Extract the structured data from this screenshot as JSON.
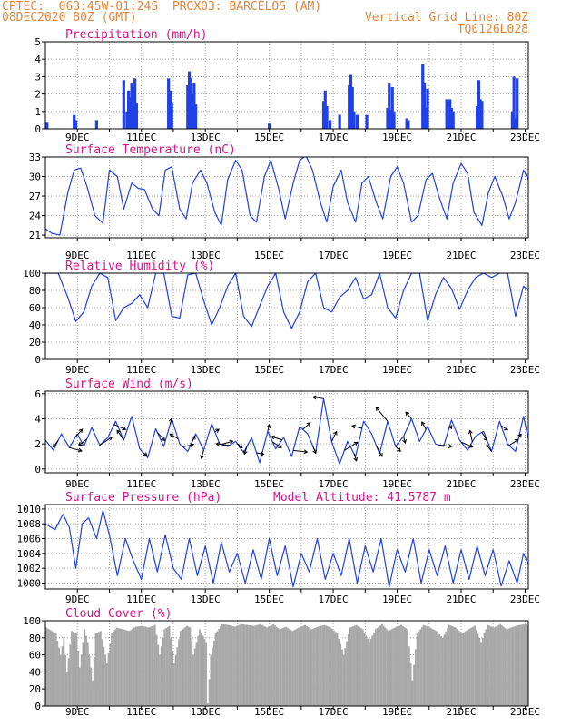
{
  "header": {
    "line1_left": "CPTEC:  063:45W-01:24S  PROX03: BARCELOS (AM)",
    "line2_left": "08DEC2020 80Z (GMT)",
    "line2_right": "Vertical Grid Line: 80Z",
    "line3_right": "TQ0126L028"
  },
  "colors": {
    "header": "#e8843a",
    "title": "#e0108a",
    "series": "#2040e8",
    "cloud": "#a8a8a8",
    "grid": "#8c8c8c"
  },
  "chart_data": [
    {
      "id": "precip",
      "type": "bar",
      "title": "Precipitation (mm/h)",
      "ylim": [
        0,
        5
      ],
      "yticks": [
        0,
        1,
        2,
        3,
        4,
        5
      ],
      "xlim": [
        8,
        23.1
      ],
      "xtick_labels": [
        "9DEC",
        "11DEC",
        "13DEC",
        "15DEC",
        "17DEC",
        "19DEC",
        "21DEC",
        "23DEC"
      ],
      "x": [
        8.05,
        8.9,
        8.95,
        9.6,
        10.45,
        10.55,
        10.6,
        10.65,
        10.7,
        10.75,
        10.8,
        10.85,
        11.85,
        11.9,
        11.95,
        12.45,
        12.5,
        12.55,
        12.6,
        12.65,
        12.7,
        15.0,
        16.7,
        16.75,
        16.8,
        16.9,
        17.2,
        17.5,
        17.55,
        17.6,
        17.65,
        17.75,
        18.05,
        18.7,
        18.75,
        18.8,
        18.85,
        18.9,
        19.3,
        19.35,
        19.8,
        19.85,
        19.9,
        19.95,
        20.55,
        20.6,
        20.65,
        20.7,
        20.75,
        21.5,
        21.55,
        21.6,
        21.65,
        22.6,
        22.65,
        22.7,
        22.75
      ],
      "values": [
        0.4,
        0.8,
        0.5,
        0.5,
        2.8,
        1.0,
        2.2,
        1.8,
        2.6,
        2.2,
        2.9,
        1.5,
        2.9,
        2.2,
        1.5,
        2.5,
        3.3,
        2.9,
        2.0,
        2.6,
        1.4,
        0.3,
        1.6,
        2.2,
        1.3,
        0.5,
        0.8,
        2.5,
        3.1,
        2.4,
        1.0,
        0.8,
        0.8,
        1.2,
        2.6,
        1.1,
        2.4,
        1.0,
        0.6,
        0.5,
        3.7,
        2.6,
        1.2,
        2.3,
        1.7,
        1.4,
        1.7,
        1.2,
        1.0,
        1.3,
        2.8,
        1.7,
        1.6,
        1.0,
        3.0,
        0.6,
        2.9
      ]
    },
    {
      "id": "temp",
      "type": "line",
      "title": "Surface Temperature (nC)",
      "ylim": [
        20.6,
        33
      ],
      "yticks": [
        21,
        24,
        27,
        30,
        33
      ],
      "xlim": [
        8,
        23.1
      ],
      "xtick_labels": [
        "9DEC",
        "11DEC",
        "13DEC",
        "15DEC",
        "17DEC",
        "19DEC",
        "21DEC",
        "23DEC"
      ],
      "x": [
        8.0,
        8.2,
        8.45,
        8.7,
        8.9,
        9.1,
        9.3,
        9.55,
        9.8,
        10.0,
        10.25,
        10.45,
        10.7,
        10.9,
        11.1,
        11.35,
        11.55,
        11.75,
        11.95,
        12.2,
        12.4,
        12.6,
        12.85,
        13.05,
        13.3,
        13.5,
        13.7,
        13.95,
        14.15,
        14.4,
        14.6,
        14.85,
        15.05,
        15.3,
        15.5,
        15.75,
        15.95,
        16.15,
        16.35,
        16.6,
        16.8,
        17.0,
        17.25,
        17.45,
        17.7,
        17.9,
        18.1,
        18.35,
        18.55,
        18.8,
        19.0,
        19.2,
        19.45,
        19.65,
        19.9,
        20.1,
        20.3,
        20.55,
        20.75,
        21.0,
        21.2,
        21.4,
        21.65,
        21.85,
        22.05,
        22.3,
        22.5,
        22.7,
        22.95,
        23.1
      ],
      "values": [
        22.0,
        21.3,
        21.0,
        27.5,
        31.0,
        31.3,
        28.5,
        24.0,
        22.8,
        31.0,
        30.0,
        25.0,
        29.0,
        28.2,
        28.0,
        25.0,
        24.0,
        31.0,
        31.5,
        25.0,
        23.5,
        29.0,
        31.0,
        29.0,
        24.5,
        22.5,
        29.5,
        32.5,
        31.0,
        24.0,
        23.0,
        30.0,
        32.5,
        28.0,
        23.5,
        29.0,
        32.5,
        33.2,
        31.0,
        26.0,
        23.0,
        28.5,
        31.0,
        26.0,
        23.0,
        29.0,
        30.0,
        26.0,
        23.5,
        30.0,
        31.5,
        29.0,
        23.0,
        24.0,
        29.5,
        30.5,
        27.0,
        23.5,
        29.0,
        32.0,
        30.5,
        24.5,
        22.5,
        27.5,
        30.0,
        27.0,
        23.5,
        26.0,
        31.0,
        29.5
      ]
    },
    {
      "id": "rh",
      "type": "line",
      "title": "Relative Humidity (%)",
      "ylim": [
        0,
        100
      ],
      "yticks": [
        0,
        20,
        40,
        60,
        80,
        100
      ],
      "xlim": [
        8,
        23.1
      ],
      "xtick_labels": [
        "9DEC",
        "11DEC",
        "13DEC",
        "15DEC",
        "17DEC",
        "19DEC",
        "21DEC",
        "23DEC"
      ],
      "x": [
        8.0,
        8.4,
        8.7,
        8.95,
        9.2,
        9.45,
        9.7,
        9.95,
        10.2,
        10.45,
        10.7,
        10.95,
        11.2,
        11.45,
        11.7,
        11.95,
        12.2,
        12.45,
        12.7,
        12.95,
        13.2,
        13.45,
        13.7,
        13.95,
        14.2,
        14.45,
        14.7,
        14.95,
        15.2,
        15.45,
        15.7,
        15.95,
        16.2,
        16.45,
        16.7,
        16.95,
        17.2,
        17.45,
        17.7,
        17.95,
        18.2,
        18.45,
        18.7,
        18.95,
        19.2,
        19.45,
        19.7,
        19.95,
        20.2,
        20.45,
        20.7,
        20.95,
        21.2,
        21.45,
        21.7,
        21.95,
        22.2,
        22.45,
        22.7,
        22.95,
        23.1
      ],
      "values": [
        100,
        100,
        72,
        44,
        55,
        85,
        100,
        95,
        45,
        60,
        65,
        75,
        60,
        100,
        100,
        50,
        48,
        98,
        100,
        68,
        40,
        60,
        85,
        100,
        50,
        38,
        62,
        85,
        100,
        55,
        36,
        55,
        90,
        100,
        60,
        55,
        72,
        80,
        95,
        70,
        75,
        100,
        60,
        48,
        80,
        100,
        100,
        45,
        75,
        95,
        82,
        58,
        80,
        95,
        100,
        95,
        100,
        100,
        50,
        85,
        80
      ]
    },
    {
      "id": "wind",
      "type": "line",
      "title": "Surface Wind (m/s)",
      "ylim": [
        -0.3,
        6.2
      ],
      "yticks": [
        0,
        2,
        4,
        6
      ],
      "xlim": [
        8,
        23.1
      ],
      "xtick_labels": [
        "9DEC",
        "11DEC",
        "13DEC",
        "15DEC",
        "17DEC",
        "19DEC",
        "21DEC",
        "23DEC"
      ],
      "x": [
        8.0,
        8.25,
        8.5,
        8.75,
        9.0,
        9.2,
        9.45,
        9.7,
        9.95,
        10.2,
        10.45,
        10.7,
        10.95,
        11.2,
        11.45,
        11.7,
        11.95,
        12.2,
        12.45,
        12.7,
        12.95,
        13.2,
        13.45,
        13.7,
        13.95,
        14.2,
        14.45,
        14.7,
        14.95,
        15.2,
        15.45,
        15.7,
        15.95,
        16.2,
        16.45,
        16.7,
        16.95,
        17.2,
        17.45,
        17.7,
        17.95,
        18.2,
        18.45,
        18.7,
        18.95,
        19.2,
        19.45,
        19.7,
        19.95,
        20.2,
        20.45,
        20.7,
        20.95,
        21.2,
        21.45,
        21.7,
        21.95,
        22.2,
        22.45,
        22.7,
        22.95,
        23.1
      ],
      "values": [
        2.3,
        1.5,
        2.8,
        1.7,
        2.8,
        1.8,
        3.3,
        1.9,
        2.5,
        3.8,
        2.3,
        4.2,
        1.6,
        0.9,
        3.2,
        1.8,
        4.0,
        2.0,
        1.4,
        2.8,
        1.5,
        3.6,
        2.0,
        1.8,
        2.2,
        1.3,
        2.5,
        0.5,
        3.0,
        1.6,
        2.5,
        1.0,
        3.4,
        2.8,
        1.3,
        5.6,
        2.2,
        0.4,
        2.2,
        1.0,
        3.8,
        2.8,
        1.2,
        3.8,
        1.8,
        2.6,
        4.0,
        2.2,
        3.4,
        2.0,
        1.8,
        3.9,
        2.3,
        1.5,
        2.6,
        3.0,
        1.4,
        3.8,
        2.0,
        1.4,
        4.2,
        2.4
      ],
      "vector_x": [
        8.4,
        8.75,
        8.95,
        9.3,
        9.7,
        10.15,
        10.45,
        11.05,
        11.5,
        11.9,
        12.15,
        12.3,
        12.6,
        12.95,
        13.3,
        13.5,
        13.75,
        14.0,
        14.3,
        14.6,
        14.95,
        15.1,
        15.4,
        15.75,
        16.05,
        16.35,
        16.7,
        16.95,
        17.35,
        17.65,
        17.9,
        18.35,
        18.7,
        18.95,
        19.2,
        19.45,
        19.9,
        20.3,
        20.65,
        21.0,
        21.35,
        21.65,
        21.95,
        22.25,
        22.5,
        22.8
      ],
      "vector_u": [
        -0.6,
        1.5,
        0.8,
        -1.0,
        1.5,
        1.4,
        -0.8,
        0.5,
        0.9,
        0.2,
        -1.0,
        1.3,
        0.3,
        -0.3,
        0.5,
        1.4,
        -1.6,
        0.6,
        -0.3,
        0.9,
        0.2,
        1.1,
        -1.3,
        1.7,
        0.9,
        0.4,
        -1.3,
        0.6,
        1.6,
        0.3,
        -1.2,
        0.7,
        -1.4,
        0.6,
        0.2,
        -0.7,
        -0.5,
        1.6,
        0.2,
        1.4,
        -0.3,
        0.6,
        -0.6,
        0.8,
        1.1,
        0.3
      ],
      "vector_v": [
        -0.8,
        -0.4,
        0.9,
        -0.8,
        1.0,
        -0.6,
        1.2,
        -0.4,
        -1.0,
        0.7,
        0.6,
        0.3,
        0.6,
        -1.0,
        0.3,
        0.4,
        0.2,
        -0.5,
        -0.9,
        -0.2,
        0.8,
        -0.7,
        0.4,
        -0.2,
        0.8,
        -1.0,
        0.2,
        1.2,
        1.0,
        -0.9,
        0.3,
        -1.3,
        1.7,
        -0.6,
        -0.8,
        0.8,
        0.9,
        -0.2,
        -0.4,
        -0.6,
        1.4,
        -1.0,
        0.8,
        -0.5,
        0.7,
        0.4
      ]
    },
    {
      "id": "pressure",
      "type": "line",
      "title": "Surface Pressure (hPa)",
      "annotation": "Model Altitude: 41.5787 m",
      "ylim": [
        999.2,
        1010.6
      ],
      "yticks": [
        1000,
        1002,
        1004,
        1006,
        1008,
        1010
      ],
      "xlim": [
        8,
        23.1
      ],
      "xtick_labels": [
        "9DEC",
        "11DEC",
        "13DEC",
        "15DEC",
        "17DEC",
        "19DEC",
        "21DEC",
        "23DEC"
      ],
      "x": [
        8.0,
        8.3,
        8.55,
        8.75,
        8.95,
        9.15,
        9.35,
        9.6,
        9.8,
        10.0,
        10.25,
        10.5,
        10.75,
        11.0,
        11.25,
        11.5,
        11.75,
        12.0,
        12.25,
        12.5,
        12.75,
        13.0,
        13.25,
        13.5,
        13.75,
        14.0,
        14.25,
        14.5,
        14.75,
        15.0,
        15.25,
        15.5,
        15.75,
        16.0,
        16.25,
        16.5,
        16.75,
        17.0,
        17.25,
        17.5,
        17.75,
        18.0,
        18.25,
        18.5,
        18.75,
        19.0,
        19.25,
        19.5,
        19.75,
        20.0,
        20.25,
        20.5,
        20.75,
        21.0,
        21.25,
        21.5,
        21.75,
        22.0,
        22.25,
        22.5,
        22.75,
        22.95,
        23.1
      ],
      "values": [
        1008.0,
        1007.2,
        1009.3,
        1007.5,
        1002.0,
        1008.0,
        1008.8,
        1006.0,
        1009.8,
        1006.5,
        1001.0,
        1006.0,
        1003.0,
        1000.5,
        1006.0,
        1001.5,
        1006.5,
        1002.0,
        1000.5,
        1006.0,
        1001.0,
        1005.0,
        1000.0,
        1005.5,
        1001.5,
        1004.0,
        1000.0,
        1004.5,
        1000.5,
        1006.0,
        1001.0,
        1005.0,
        999.5,
        1004.0,
        1001.5,
        1006.0,
        1000.5,
        1004.0,
        1001.0,
        1006.0,
        1000.0,
        1005.0,
        1001.5,
        1006.0,
        999.5,
        1004.5,
        1001.5,
        1006.0,
        1000.0,
        1004.5,
        1001.0,
        1005.0,
        1000.0,
        1004.5,
        1000.5,
        1005.0,
        1001.0,
        1004.5,
        999.6,
        1003.0,
        1000.0,
        1004.0,
        1002.5
      ]
    },
    {
      "id": "cloud",
      "type": "area",
      "title": "Cloud Cover (%)",
      "ylim": [
        0,
        100
      ],
      "yticks": [
        0,
        20,
        40,
        60,
        80,
        100
      ],
      "xlim": [
        8,
        23.1
      ],
      "xtick_labels": [
        "9DEC",
        "11DEC",
        "13DEC",
        "15DEC",
        "17DEC",
        "19DEC",
        "21DEC",
        "23DEC"
      ],
      "x": [
        8.0,
        8.3,
        8.45,
        8.55,
        8.65,
        8.8,
        8.95,
        9.05,
        9.2,
        9.3,
        9.45,
        9.55,
        9.7,
        9.9,
        10.05,
        10.2,
        10.4,
        10.6,
        10.8,
        11.0,
        11.2,
        11.4,
        11.55,
        11.7,
        11.85,
        12.0,
        12.2,
        12.4,
        12.5,
        12.6,
        12.8,
        13.0,
        13.05,
        13.15,
        13.3,
        13.5,
        13.7,
        13.9,
        14.1,
        14.3,
        14.5,
        14.7,
        14.9,
        15.1,
        15.3,
        15.5,
        15.7,
        15.9,
        16.1,
        16.3,
        16.5,
        16.7,
        16.9,
        17.1,
        17.3,
        17.5,
        17.7,
        17.9,
        18.1,
        18.3,
        18.5,
        18.7,
        18.9,
        19.1,
        19.3,
        19.45,
        19.6,
        19.8,
        20.0,
        20.2,
        20.4,
        20.6,
        20.8,
        21.0,
        21.2,
        21.4,
        21.6,
        21.8,
        22.0,
        22.2,
        22.4,
        22.6,
        22.8,
        23.0,
        23.1
      ],
      "values": [
        92,
        85,
        60,
        80,
        40,
        88,
        85,
        45,
        90,
        75,
        30,
        85,
        88,
        50,
        85,
        92,
        90,
        88,
        93,
        94,
        92,
        95,
        60,
        90,
        94,
        50,
        88,
        94,
        92,
        60,
        90,
        75,
        3,
        60,
        85,
        96,
        95,
        93,
        96,
        95,
        94,
        96,
        92,
        96,
        90,
        93,
        88,
        92,
        95,
        90,
        93,
        95,
        92,
        85,
        60,
        92,
        95,
        90,
        75,
        90,
        96,
        88,
        92,
        95,
        90,
        30,
        85,
        95,
        92,
        88,
        80,
        95,
        92,
        85,
        90,
        94,
        75,
        95,
        92,
        96,
        90,
        93,
        95,
        96,
        92
      ]
    }
  ]
}
